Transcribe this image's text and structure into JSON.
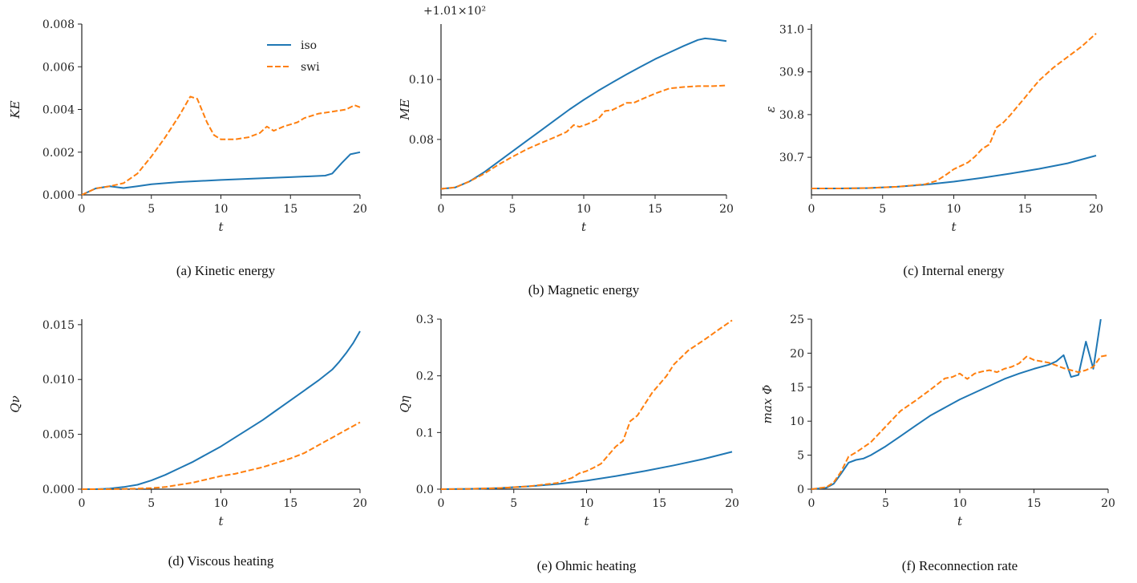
{
  "colors": {
    "iso": "#1f77b4",
    "swi": "#ff7f0e"
  },
  "legend": [
    {
      "key": "iso",
      "label": "iso",
      "style": "solid"
    },
    {
      "key": "swi",
      "label": "swi",
      "style": "dashed"
    }
  ],
  "chart_data": [
    {
      "id": "a",
      "type": "line",
      "caption": "(a) Kinetic energy",
      "xlabel": "t",
      "ylabel": "KE",
      "offset_text": "",
      "xlim": [
        0,
        20
      ],
      "ylim": [
        0,
        0.008
      ],
      "xticks": [
        "0",
        "5",
        "10",
        "15",
        "20"
      ],
      "xtick_values": [
        0,
        5,
        10,
        15,
        20
      ],
      "yticks": [
        "0.000",
        "0.002",
        "0.004",
        "0.006",
        "0.008"
      ],
      "ytick_values": [
        0,
        0.002,
        0.004,
        0.006,
        0.008
      ],
      "has_legend": true,
      "series": [
        {
          "name": "iso",
          "style": "solid",
          "x": [
            0,
            1,
            2,
            3,
            4,
            5,
            7,
            10,
            13,
            15,
            17.5,
            18,
            18.7,
            19.3,
            20
          ],
          "y": [
            0,
            0.0003,
            0.0004,
            0.00032,
            0.0004,
            0.0005,
            0.0006,
            0.0007,
            0.00078,
            0.00083,
            0.0009,
            0.001,
            0.0015,
            0.0019,
            0.002
          ]
        },
        {
          "name": "swi",
          "style": "dashed",
          "x": [
            0,
            1,
            2,
            3,
            4,
            5,
            6,
            7,
            7.8,
            8.3,
            9,
            9.5,
            10,
            11,
            12,
            12.8,
            13.3,
            13.8,
            14.5,
            15.5,
            16,
            17,
            18,
            19,
            19.6,
            20
          ],
          "y": [
            0,
            0.0003,
            0.0004,
            0.00055,
            0.001,
            0.0018,
            0.0027,
            0.0037,
            0.0046,
            0.0045,
            0.0034,
            0.0028,
            0.0026,
            0.0026,
            0.0027,
            0.0029,
            0.0032,
            0.003,
            0.0032,
            0.0034,
            0.0036,
            0.0038,
            0.0039,
            0.004,
            0.0042,
            0.0041
          ]
        }
      ]
    },
    {
      "id": "b",
      "type": "line",
      "caption": "(b) Magnetic energy",
      "xlabel": "t",
      "ylabel": "ME",
      "offset_text": "+1.01×10²",
      "xlim": [
        0,
        20
      ],
      "ylim": [
        0.0615,
        0.1185
      ],
      "xticks": [
        "0",
        "5",
        "10",
        "15",
        "20"
      ],
      "xtick_values": [
        0,
        5,
        10,
        15,
        20
      ],
      "yticks": [
        "0.08",
        "0.10"
      ],
      "ytick_values": [
        0.08,
        0.1
      ],
      "has_legend": false,
      "series": [
        {
          "name": "iso",
          "style": "solid",
          "x": [
            0,
            1,
            2,
            3,
            4,
            5,
            6,
            7,
            8,
            9,
            10,
            11,
            12,
            13,
            14,
            15,
            16,
            17,
            18,
            18.5,
            19,
            20
          ],
          "y": [
            0.0635,
            0.064,
            0.066,
            0.069,
            0.0725,
            0.076,
            0.0795,
            0.083,
            0.0865,
            0.09,
            0.0932,
            0.0962,
            0.099,
            0.1017,
            0.1043,
            0.1068,
            0.109,
            0.1112,
            0.1132,
            0.1137,
            0.1135,
            0.1128
          ]
        },
        {
          "name": "swi",
          "style": "dashed",
          "x": [
            0,
            1,
            2,
            3,
            4,
            5,
            6,
            7,
            8,
            8.8,
            9.3,
            9.7,
            10.3,
            11,
            11.5,
            12,
            12.5,
            13,
            13.5,
            14,
            15,
            16,
            17,
            18,
            19,
            20
          ],
          "y": [
            0.0635,
            0.064,
            0.066,
            0.0685,
            0.0715,
            0.0742,
            0.0767,
            0.0788,
            0.0808,
            0.0825,
            0.0848,
            0.0842,
            0.0852,
            0.0868,
            0.0895,
            0.0898,
            0.091,
            0.0922,
            0.0922,
            0.0933,
            0.0953,
            0.097,
            0.0975,
            0.0978,
            0.0978,
            0.098
          ]
        }
      ]
    },
    {
      "id": "c",
      "type": "line",
      "caption": "(c) Internal energy",
      "xlabel": "t",
      "ylabel": "ε",
      "offset_text": "",
      "xlim": [
        0,
        20
      ],
      "ylim": [
        30.612,
        31.012
      ],
      "xticks": [
        "0",
        "5",
        "10",
        "15",
        "20"
      ],
      "xtick_values": [
        0,
        5,
        10,
        15,
        20
      ],
      "yticks": [
        "30.7",
        "30.8",
        "30.9",
        "31.0"
      ],
      "ytick_values": [
        30.7,
        30.8,
        30.9,
        31.0
      ],
      "has_legend": false,
      "series": [
        {
          "name": "iso",
          "style": "solid",
          "x": [
            0,
            2,
            4,
            6,
            8,
            10,
            12,
            14,
            16,
            18,
            20
          ],
          "y": [
            30.627,
            30.627,
            30.628,
            30.631,
            30.636,
            30.643,
            30.652,
            30.662,
            30.673,
            30.686,
            30.704
          ]
        },
        {
          "name": "swi",
          "style": "dashed",
          "x": [
            0,
            2,
            4,
            6,
            8,
            8.8,
            9.5,
            10,
            10.5,
            11,
            11.5,
            12,
            12.5,
            13,
            13.5,
            14,
            14.5,
            15,
            15.5,
            16,
            17,
            18,
            19,
            20
          ],
          "y": [
            30.627,
            30.627,
            30.628,
            30.631,
            30.637,
            30.645,
            30.66,
            30.672,
            30.68,
            30.688,
            30.702,
            30.72,
            30.73,
            30.77,
            30.782,
            30.8,
            30.82,
            30.84,
            30.86,
            30.88,
            30.91,
            30.935,
            30.96,
            30.99
          ]
        }
      ]
    },
    {
      "id": "d",
      "type": "line",
      "caption": "(d) Viscous heating",
      "xlabel": "t",
      "ylabel": "Qν",
      "offset_text": "",
      "xlim": [
        0,
        20
      ],
      "ylim": [
        0,
        0.0155
      ],
      "xticks": [
        "0",
        "5",
        "10",
        "15",
        "20"
      ],
      "xtick_values": [
        0,
        5,
        10,
        15,
        20
      ],
      "yticks": [
        "0.000",
        "0.005",
        "0.010",
        "0.015"
      ],
      "ytick_values": [
        0,
        0.005,
        0.01,
        0.015
      ],
      "has_legend": false,
      "series": [
        {
          "name": "iso",
          "style": "solid",
          "x": [
            0,
            1,
            2,
            3,
            4,
            5,
            6,
            7,
            8,
            9,
            10,
            11,
            12,
            13,
            14,
            15,
            16,
            17,
            18,
            18.5,
            19,
            19.5,
            20
          ],
          "y": [
            0,
            0,
            5e-05,
            0.0002,
            0.0004,
            0.0008,
            0.0013,
            0.0019,
            0.0025,
            0.0032,
            0.0039,
            0.0047,
            0.0055,
            0.0063,
            0.0072,
            0.0081,
            0.009,
            0.0099,
            0.0109,
            0.0116,
            0.0124,
            0.0133,
            0.0144
          ]
        },
        {
          "name": "swi",
          "style": "dashed",
          "x": [
            0,
            2,
            4,
            5,
            6,
            7,
            8,
            9,
            10,
            11,
            12,
            13,
            14,
            15,
            16,
            17,
            18,
            19,
            20
          ],
          "y": [
            0,
            0,
            5e-05,
            0.0001,
            0.0002,
            0.0004,
            0.0006,
            0.0009,
            0.0012,
            0.0014,
            0.0017,
            0.002,
            0.0024,
            0.0028,
            0.0033,
            0.004,
            0.0047,
            0.0054,
            0.0061
          ]
        }
      ]
    },
    {
      "id": "e",
      "type": "line",
      "caption": "(e) Ohmic heating",
      "xlabel": "t",
      "ylabel": "Qη",
      "offset_text": "",
      "xlim": [
        0,
        20
      ],
      "ylim": [
        0,
        0.3
      ],
      "xticks": [
        "0",
        "5",
        "10",
        "15",
        "20"
      ],
      "xtick_values": [
        0,
        5,
        10,
        15,
        20
      ],
      "yticks": [
        "0.0",
        "0.1",
        "0.2",
        "0.3"
      ],
      "ytick_values": [
        0,
        0.1,
        0.2,
        0.3
      ],
      "has_legend": false,
      "series": [
        {
          "name": "iso",
          "style": "solid",
          "x": [
            0,
            2,
            4,
            6,
            8,
            10,
            12,
            14,
            16,
            18,
            20
          ],
          "y": [
            0,
            0.0005,
            0.002,
            0.005,
            0.009,
            0.015,
            0.023,
            0.032,
            0.042,
            0.053,
            0.066
          ]
        },
        {
          "name": "swi",
          "style": "dashed",
          "x": [
            0,
            2,
            4,
            6,
            8,
            9,
            9.5,
            10,
            10.5,
            11,
            11.5,
            12,
            12.5,
            13,
            13.5,
            14,
            14.5,
            15,
            15.5,
            16,
            17,
            18,
            19,
            20
          ],
          "y": [
            0,
            0.0005,
            0.002,
            0.005,
            0.011,
            0.02,
            0.028,
            0.032,
            0.038,
            0.045,
            0.06,
            0.075,
            0.085,
            0.12,
            0.13,
            0.15,
            0.17,
            0.185,
            0.2,
            0.22,
            0.245,
            0.262,
            0.28,
            0.298
          ]
        }
      ]
    },
    {
      "id": "f",
      "type": "line",
      "caption": "(f) Reconnection rate",
      "xlabel": "t",
      "ylabel": "max Φ",
      "offset_text": "",
      "xlim": [
        0,
        20
      ],
      "ylim": [
        0,
        25
      ],
      "xticks": [
        "0",
        "5",
        "10",
        "15",
        "20"
      ],
      "xtick_values": [
        0,
        5,
        10,
        15,
        20
      ],
      "yticks": [
        "0",
        "5",
        "10",
        "15",
        "20",
        "25"
      ],
      "ytick_values": [
        0,
        5,
        10,
        15,
        20,
        25
      ],
      "has_legend": false,
      "series": [
        {
          "name": "iso",
          "style": "solid",
          "x": [
            0,
            1,
            1.5,
            2,
            2.5,
            3,
            3.5,
            4,
            5,
            6,
            7,
            8,
            9,
            10,
            11,
            12,
            13,
            14,
            15,
            16,
            16.5,
            17,
            17.5,
            18,
            18.5,
            19,
            19.5
          ],
          "y": [
            0,
            0.2,
            0.8,
            2.3,
            3.9,
            4.3,
            4.5,
            5,
            6.3,
            7.8,
            9.3,
            10.8,
            12,
            13.2,
            14.2,
            15.2,
            16.2,
            17,
            17.7,
            18.3,
            18.8,
            19.7,
            16.5,
            16.8,
            21.7,
            17.7,
            25
          ]
        },
        {
          "name": "swi",
          "style": "dashed",
          "x": [
            0,
            1,
            1.5,
            2,
            2.5,
            3,
            4,
            5,
            6,
            7,
            8,
            9,
            9.5,
            10,
            10.5,
            11,
            11.5,
            12,
            12.5,
            13,
            13.5,
            14,
            14.5,
            15,
            15.5,
            16,
            16.5,
            17,
            17.5,
            18,
            18.5,
            19,
            19.5,
            20
          ],
          "y": [
            0,
            0.3,
            1,
            2.6,
            4.8,
            5.4,
            6.9,
            9.2,
            11.5,
            13,
            14.6,
            16.3,
            16.5,
            17,
            16.2,
            17,
            17.3,
            17.5,
            17.2,
            17.7,
            18,
            18.5,
            19.5,
            19,
            18.8,
            18.6,
            18.2,
            17.8,
            17.5,
            17.2,
            17.5,
            18,
            19.5,
            19.7
          ]
        }
      ]
    }
  ]
}
